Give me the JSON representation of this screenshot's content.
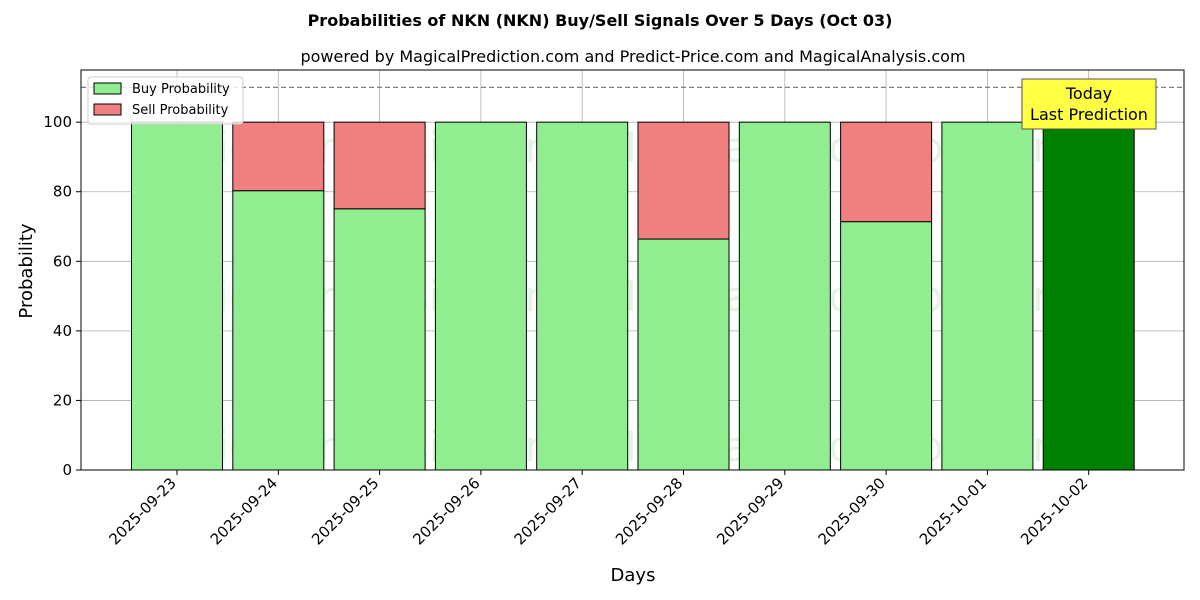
{
  "title": "Probabilities of NKN (NKN) Buy/Sell Signals Over 5 Days (Oct 03)",
  "subtitle": "powered by MagicalPrediction.com and Predict-Price.com and MagicalAnalysis.com",
  "watermarks": [
    "MagicalAnalysis.com",
    "MagicalPrediction.com"
  ],
  "annotation": {
    "line1": "Today",
    "line2": "Last Prediction",
    "bg_color": "#ffff44"
  },
  "chart_data": {
    "type": "bar",
    "stacked": true,
    "xlabel": "Days",
    "ylabel": "Probability",
    "ylim": [
      0,
      115
    ],
    "yticks": [
      0,
      20,
      40,
      60,
      80,
      100
    ],
    "reference_line": 110,
    "grid": true,
    "legend_position": "top-left",
    "categories": [
      "2025-09-23",
      "2025-09-24",
      "2025-09-25",
      "2025-09-26",
      "2025-09-27",
      "2025-09-28",
      "2025-09-29",
      "2025-09-30",
      "2025-10-01",
      "2025-10-02"
    ],
    "series": [
      {
        "name": "Buy Probability",
        "color": "#90ee90",
        "highlight_color": "#008000",
        "values": [
          100,
          80.3,
          75.1,
          100,
          100,
          66.4,
          100,
          71.4,
          100,
          100
        ]
      },
      {
        "name": "Sell Probability",
        "color": "#f08080",
        "values": [
          0,
          19.7,
          24.9,
          0,
          0,
          33.6,
          0,
          28.6,
          0,
          0
        ]
      }
    ],
    "highlight_last": true
  }
}
